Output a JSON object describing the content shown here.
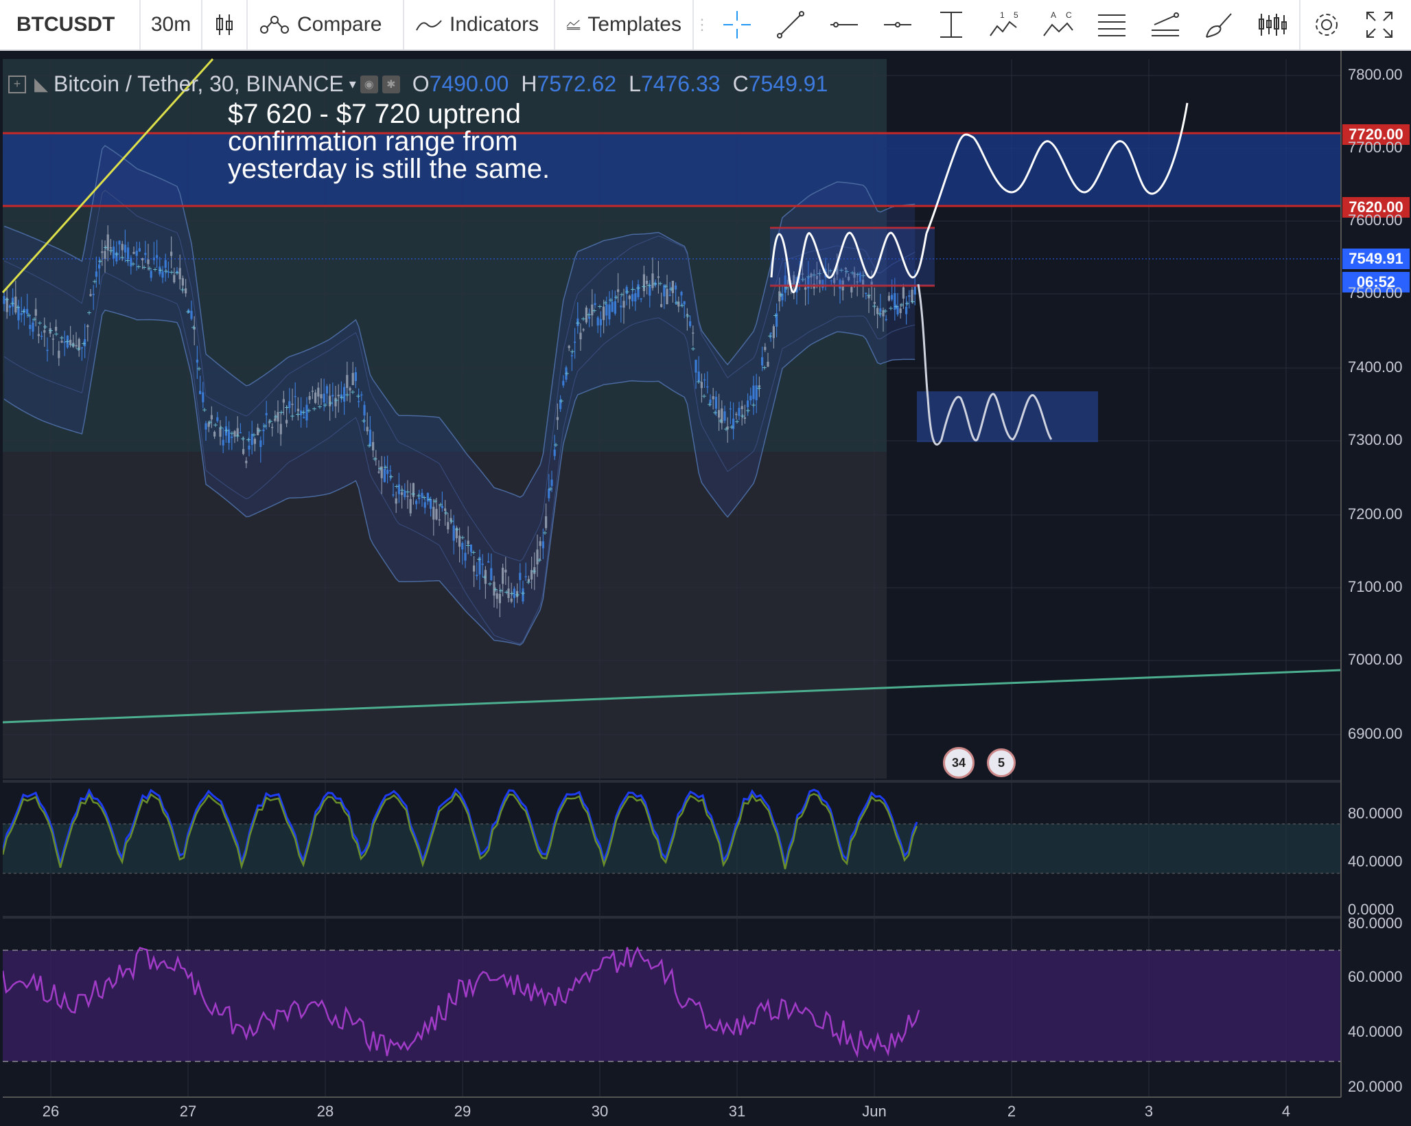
{
  "toolbar": {
    "symbol": "BTCUSDT",
    "interval": "30m",
    "compare_label": "Compare",
    "indicators_label": "Indicators",
    "templates_label": "Templates"
  },
  "legend": {
    "title": "Bitcoin / Tether, 30, BINANCE",
    "o_key": "O",
    "o_val": "7490.00",
    "h_key": "H",
    "h_val": "7572.62",
    "l_key": "L",
    "l_val": "7476.33",
    "c_key": "C",
    "c_val": "7549.91"
  },
  "annotation": "$7 620 - $7 720 uptrend\nconfirmation range from\nyesterday is still the same.",
  "price_axis": {
    "ticks": [
      "7800.00",
      "7700.00",
      "7600.00",
      "7500.00",
      "7400.00",
      "7300.00",
      "7200.00",
      "7100.00",
      "7000.00",
      "6900.00"
    ],
    "level_high": "7720.00",
    "level_low": "7620.00",
    "last_price": "7549.91",
    "countdown": "06:52"
  },
  "stoch_axis": {
    "ticks": [
      "80.0000",
      "40.0000",
      "0.0000"
    ]
  },
  "rsi_axis": {
    "ticks": [
      "80.0000",
      "60.0000",
      "40.0000",
      "20.0000"
    ]
  },
  "time_axis": {
    "ticks": [
      "26",
      "27",
      "28",
      "29",
      "30",
      "31",
      "Jun",
      "2",
      "3",
      "4"
    ]
  },
  "events": {
    "badge_a": "34",
    "badge_b": "5"
  },
  "colors": {
    "bg": "#131722",
    "resistance": "#c62828",
    "last_price": "#2962ff",
    "rsi": "#9c27b0",
    "stoch_k": "#1e3df0",
    "stoch_d": "#6a8f2a",
    "trendline": "#4caf8f"
  }
}
